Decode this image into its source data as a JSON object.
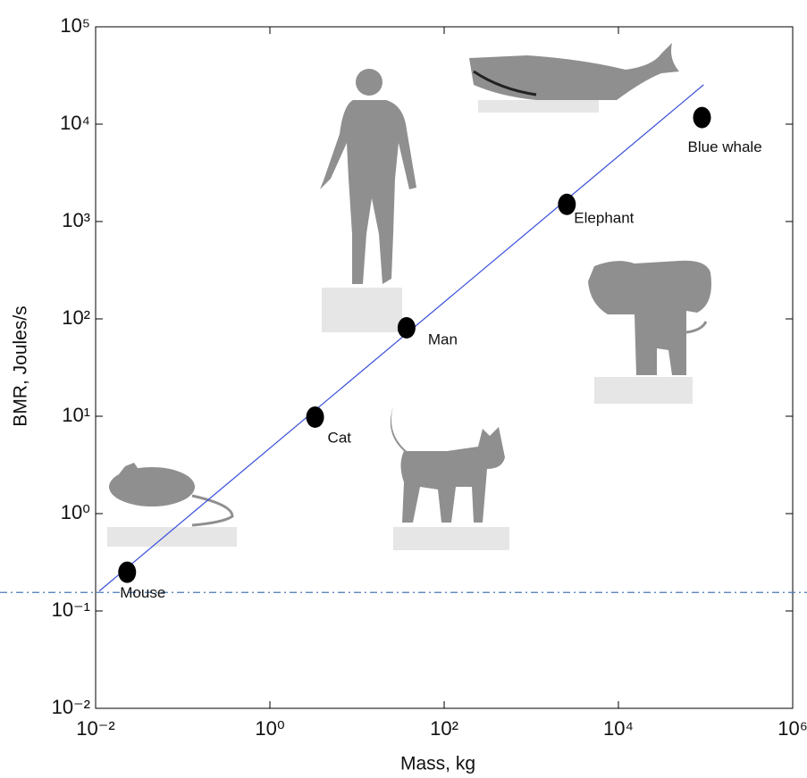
{
  "chart_data": {
    "type": "scatter",
    "x_label": "Mass, kg",
    "y_label": "BMR, Joules/s",
    "log_x": true,
    "log_y": true,
    "xlim": [
      0.01,
      1000000
    ],
    "ylim": [
      0.01,
      100000
    ],
    "xticks": [
      {
        "value": 0.01,
        "label": "10⁻²"
      },
      {
        "value": 1,
        "label": "10⁰"
      },
      {
        "value": 100,
        "label": "10²"
      },
      {
        "value": 10000,
        "label": "10⁴"
      },
      {
        "value": 1000000,
        "label": "10⁶"
      }
    ],
    "yticks": [
      {
        "value": 0.01,
        "label": "10⁻²"
      },
      {
        "value": 0.1,
        "label": "10⁻¹"
      },
      {
        "value": 1,
        "label": "10⁰"
      },
      {
        "value": 10,
        "label": "10¹"
      },
      {
        "value": 100,
        "label": "10²"
      },
      {
        "value": 1000,
        "label": "10³"
      },
      {
        "value": 10000,
        "label": "10⁴"
      },
      {
        "value": 100000,
        "label": "10⁵"
      }
    ],
    "points": {
      "labels": [
        "Mouse",
        "Cat",
        "Man",
        "Elephant",
        "Blue whale"
      ],
      "x": [
        0.023,
        3.3,
        37,
        2560,
        91000
      ],
      "y": [
        0.25,
        9.8,
        81,
        1500,
        11700
      ],
      "color": "#000000"
    },
    "fit": {
      "x": [
        0.011,
        95000
      ],
      "y": [
        0.16,
        25400
      ],
      "color": "#3a4fd9"
    },
    "hline": {
      "value": 0.155,
      "color": "#4a7ab5"
    }
  }
}
